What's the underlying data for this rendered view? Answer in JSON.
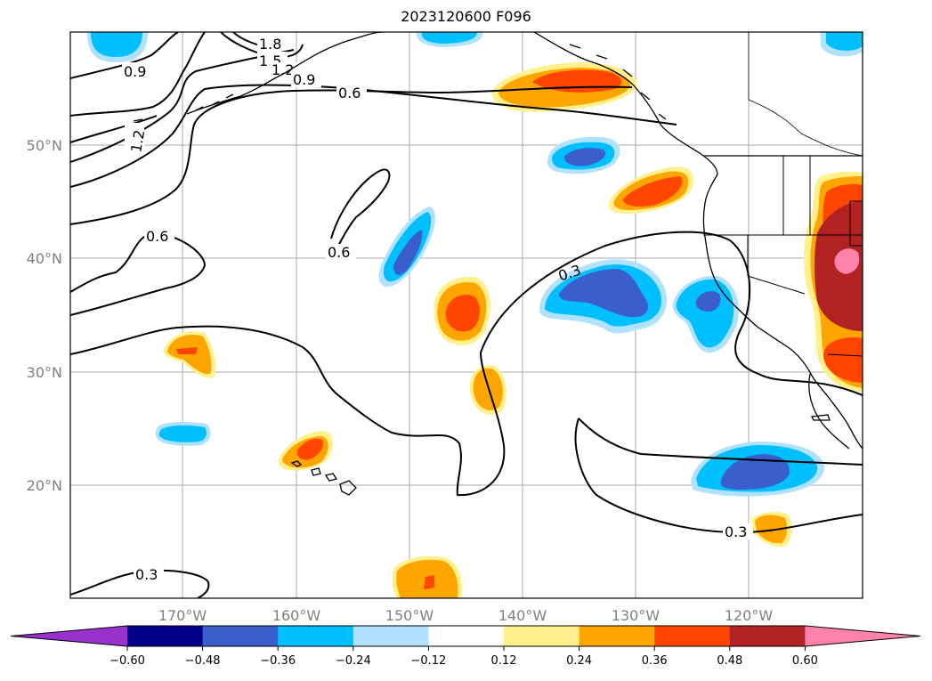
{
  "title": "2023120600 F096",
  "longitude_labels": [
    "170°W",
    "160°W",
    "150°W",
    "140°W",
    "130°W",
    "120°W"
  ],
  "latitude_labels": [
    "50°N",
    "40°N",
    "30°N",
    "20°N"
  ],
  "colorbar": {
    "colors": [
      "#9932cc",
      "#00008b",
      "#3a5fcd",
      "#00bfff",
      "#b0e2ff",
      "#ffffff",
      "#fff08c",
      "#ffa500",
      "#ff4500",
      "#b22222",
      "#ff82ab"
    ],
    "ticks": [
      "−0.60",
      "−0.48",
      "−0.36",
      "−0.24",
      "−0.12",
      "0.12",
      "0.24",
      "0.36",
      "0.48",
      "0.60"
    ]
  },
  "contour_labels": [
    "1.8",
    "1.5",
    "1.2",
    "0.9",
    "0.9",
    "0.6",
    "1.2",
    "0.6",
    "0.6",
    "0.3",
    "0.3",
    "0.3"
  ],
  "gridline_color": "#aaaaaa",
  "coastline_color": "#000000"
}
